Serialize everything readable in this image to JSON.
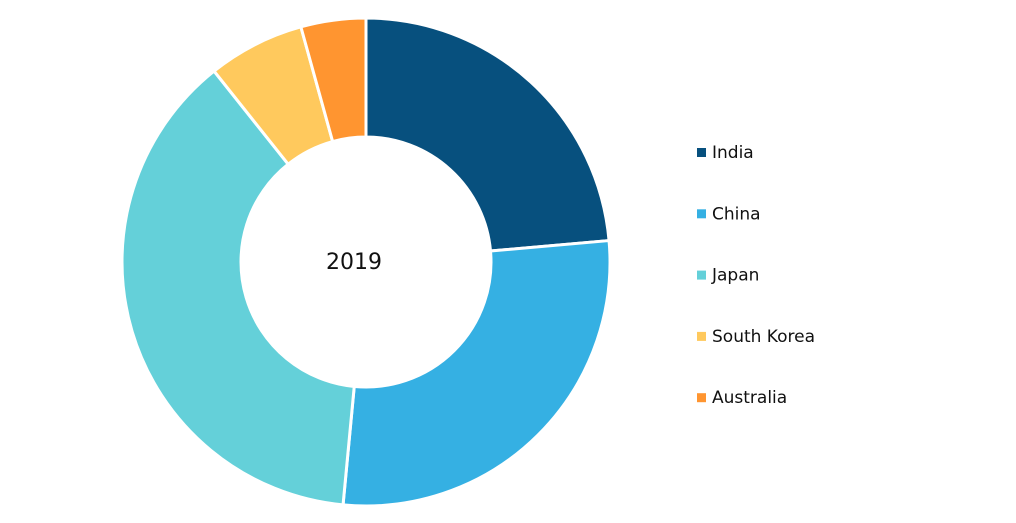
{
  "chart_data": {
    "type": "donut",
    "center_label": "2019",
    "categories": [
      "India",
      "China",
      "Japan",
      "South Korea",
      "Australia"
    ],
    "values": [
      23.6,
      27.9,
      37.8,
      6.4,
      4.3
    ],
    "colors": [
      "#07507e",
      "#35b0e3",
      "#64d0d9",
      "#ffc95d",
      "#ff9530"
    ],
    "legend": "right"
  }
}
